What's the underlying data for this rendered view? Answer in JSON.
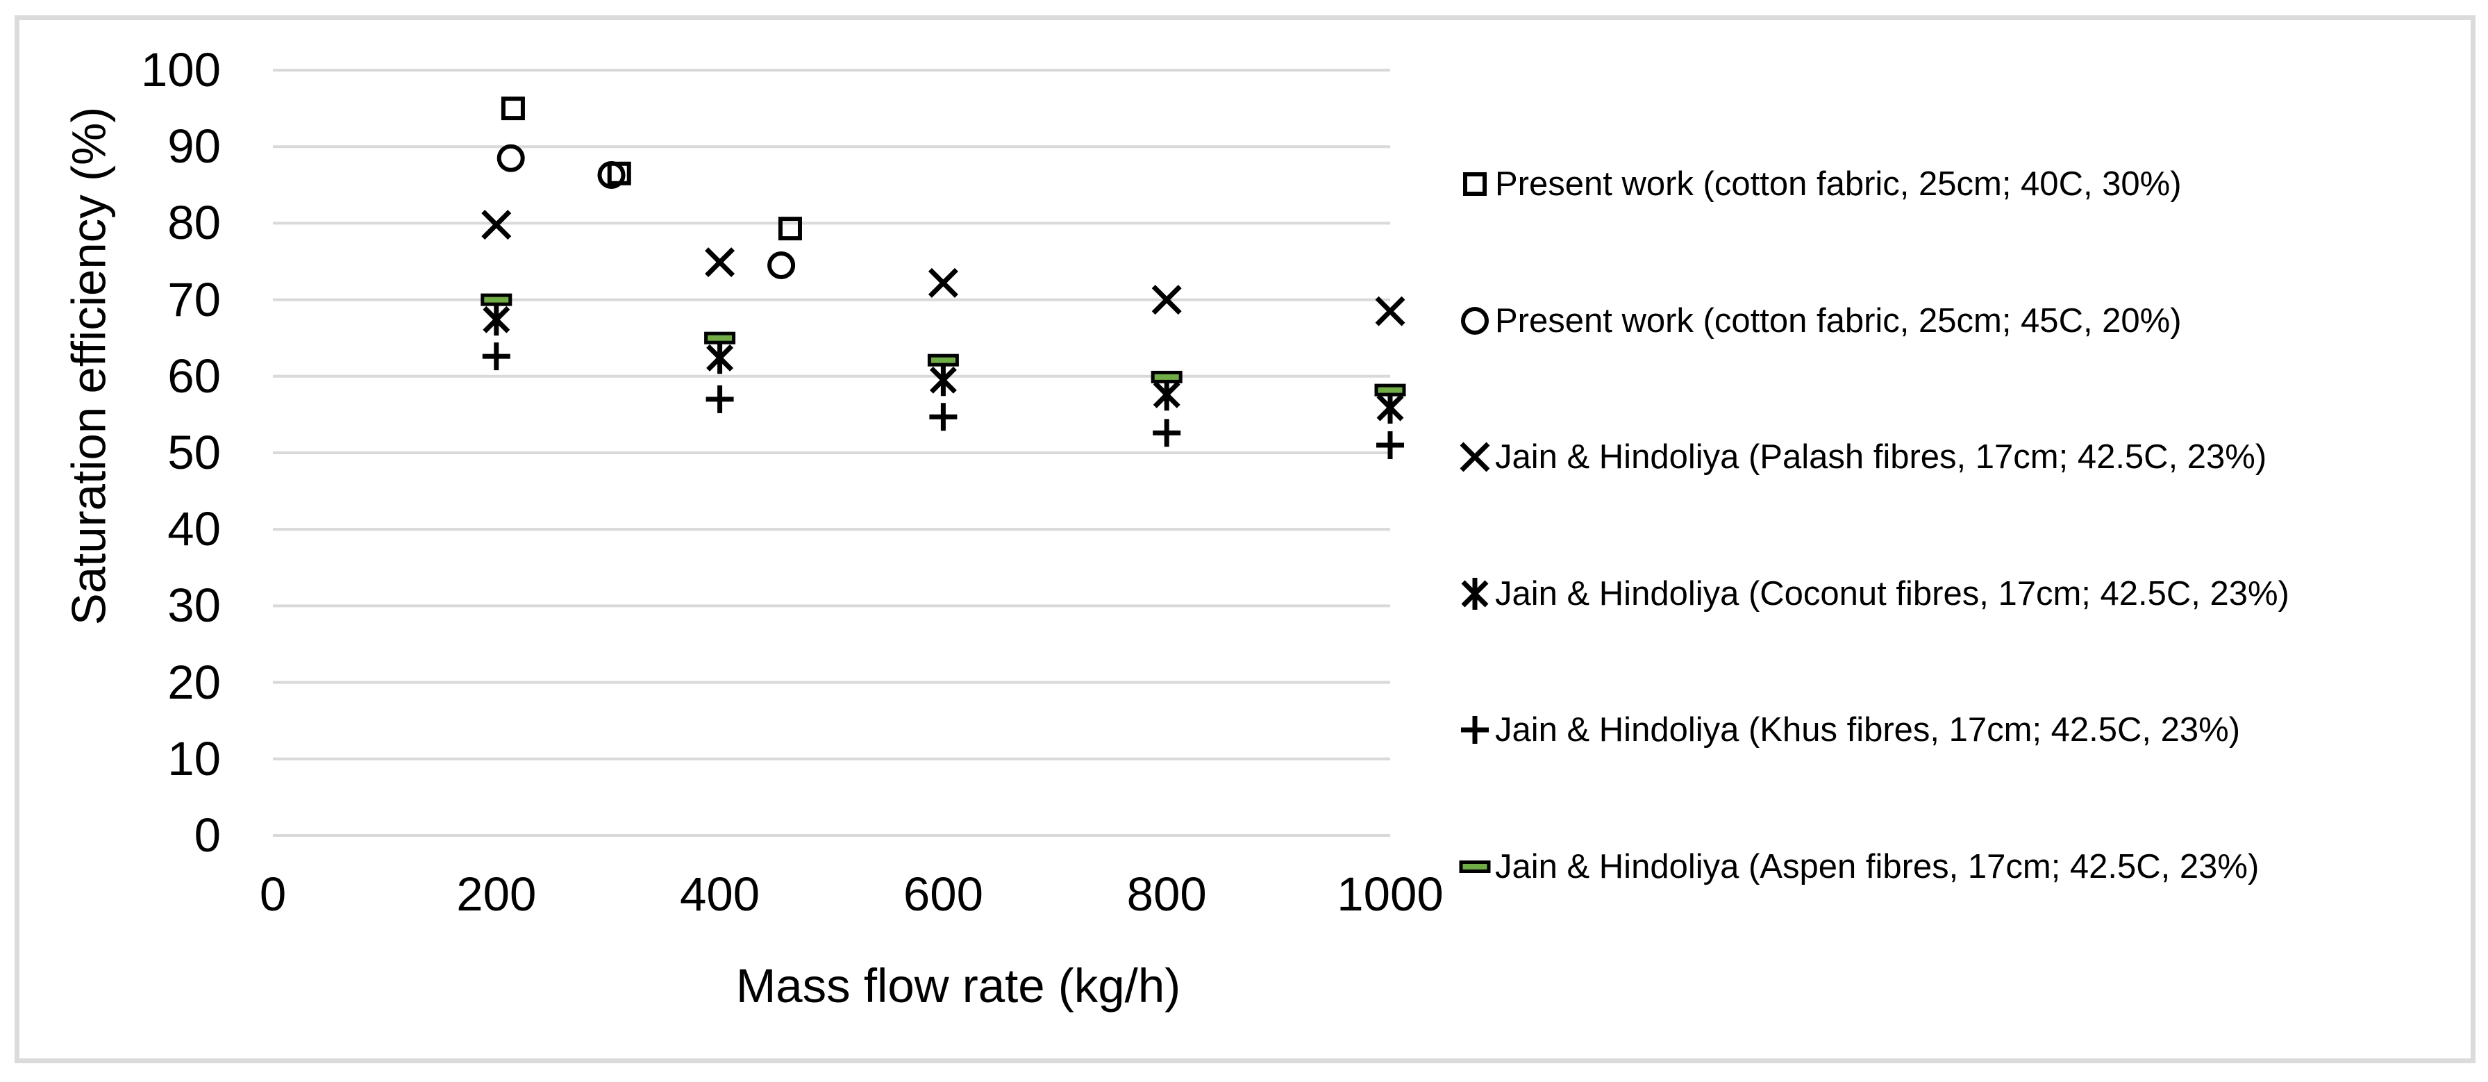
{
  "figure": {
    "background": "#ffffff",
    "border_color": "#DBDBDB"
  },
  "chart_data": {
    "type": "scatter",
    "title": "",
    "xlabel": "Mass flow rate (kg/h)",
    "ylabel": "Saturation efficiency (%)",
    "xlim": [
      0,
      1000
    ],
    "ylim": [
      0,
      100
    ],
    "x_ticks": [
      0,
      200,
      400,
      600,
      800,
      1000
    ],
    "y_ticks": [
      0,
      10,
      20,
      30,
      40,
      50,
      60,
      70,
      80,
      90,
      100
    ],
    "grid": "horizontal",
    "gridline_color": "#D9D9D9",
    "marker_color": "#000000",
    "legend_position": "right",
    "series": [
      {
        "name": "Present work (cotton fabric, 25cm; 40C, 30%)",
        "marker": "square",
        "fill": "none",
        "points": [
          [
            215,
            95
          ],
          [
            310,
            86.5
          ],
          [
            463,
            79.3
          ]
        ]
      },
      {
        "name": "Present work (cotton fabric, 25cm; 45C, 20%)",
        "marker": "circle",
        "fill": "none",
        "points": [
          [
            213,
            88.5
          ],
          [
            303,
            86.3
          ],
          [
            455,
            74.5
          ]
        ]
      },
      {
        "name": "Jain & Hindoliya (Palash fibres, 17cm; 42.5C, 23%)",
        "marker": "x",
        "fill": "none",
        "points": [
          [
            200,
            79.8
          ],
          [
            400,
            74.9
          ],
          [
            600,
            72.2
          ],
          [
            800,
            70
          ],
          [
            1000,
            68.5
          ]
        ]
      },
      {
        "name": "Jain & Hindoliya (Coconut fibres, 17cm; 42.5C, 23%)",
        "marker": "star",
        "fill": "none",
        "points": [
          [
            200,
            67.4
          ],
          [
            400,
            62.4
          ],
          [
            600,
            59.5
          ],
          [
            800,
            57.6
          ],
          [
            1000,
            55.9
          ]
        ]
      },
      {
        "name": "Jain & Hindoliya (Khus fibres, 17cm; 42.5C, 23%)",
        "marker": "plus",
        "fill": "none",
        "points": [
          [
            200,
            62.6
          ],
          [
            400,
            57
          ],
          [
            600,
            54.7
          ],
          [
            800,
            52.6
          ],
          [
            1000,
            51
          ]
        ]
      },
      {
        "name": "Jain & Hindoliya (Aspen fibres, 17cm; 42.5C, 23%)",
        "marker": "dash",
        "fill": "#70AD47",
        "points": [
          [
            200,
            70
          ],
          [
            400,
            65
          ],
          [
            600,
            62.1
          ],
          [
            800,
            59.9
          ],
          [
            1000,
            58.2
          ]
        ]
      }
    ]
  }
}
